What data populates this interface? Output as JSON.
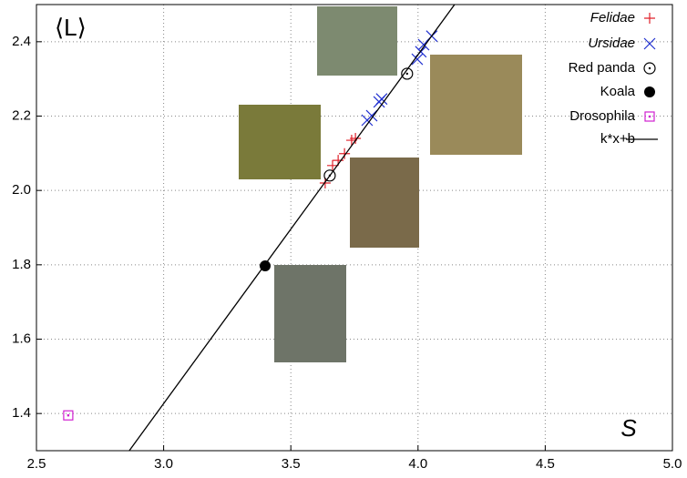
{
  "chart_data": {
    "type": "scatter",
    "x_label": "S",
    "y_label": "⟨L⟩",
    "xlim": [
      2.5,
      5.0
    ],
    "ylim": [
      1.3,
      2.5
    ],
    "xticks": [
      2.5,
      {
        "value": 3,
        "label": "3.0"
      },
      3.5,
      {
        "value": 4,
        "label": "4.0"
      },
      4.5,
      {
        "value": 5,
        "label": "5.0"
      }
    ],
    "yticks": [
      1.4,
      1.6,
      1.8,
      {
        "value": 2,
        "label": "2.0"
      },
      2.2,
      2.4
    ],
    "grid": true,
    "legend": "upper right",
    "series": [
      {
        "name": "Felidae",
        "color": "#e0202a",
        "marker": "plus",
        "italic": true,
        "x": [
          3.635,
          3.664,
          3.686,
          3.711,
          3.739,
          3.754
        ],
        "values": [
          2.02,
          2.067,
          2.081,
          2.099,
          2.135,
          2.14
        ]
      },
      {
        "name": "Ursidae",
        "color": "#2030d0",
        "marker": "cross",
        "italic": true,
        "x": [
          3.8,
          3.818,
          3.847,
          3.857,
          3.997,
          4.011,
          4.022,
          4.054
        ],
        "values": [
          2.189,
          2.201,
          2.238,
          2.246,
          2.353,
          2.373,
          2.392,
          2.415
        ]
      },
      {
        "name": "Red panda",
        "color": "#000000",
        "marker": "circle-dot",
        "x": [
          3.653,
          3.957
        ],
        "values": [
          2.04,
          2.314
        ]
      },
      {
        "name": "Koala",
        "color": "#000000",
        "marker": "disc",
        "x": [
          3.399
        ],
        "values": [
          1.797
        ]
      },
      {
        "name": "Drosophila",
        "color": "#d020d0",
        "marker": "square-dot",
        "x": [
          2.625
        ],
        "values": [
          1.395
        ]
      },
      {
        "name": "k*x+b",
        "color": "#000000",
        "marker": "line",
        "x": [
          2.85,
          4.15
        ],
        "values": [
          1.286,
          2.506
        ]
      }
    ]
  }
}
